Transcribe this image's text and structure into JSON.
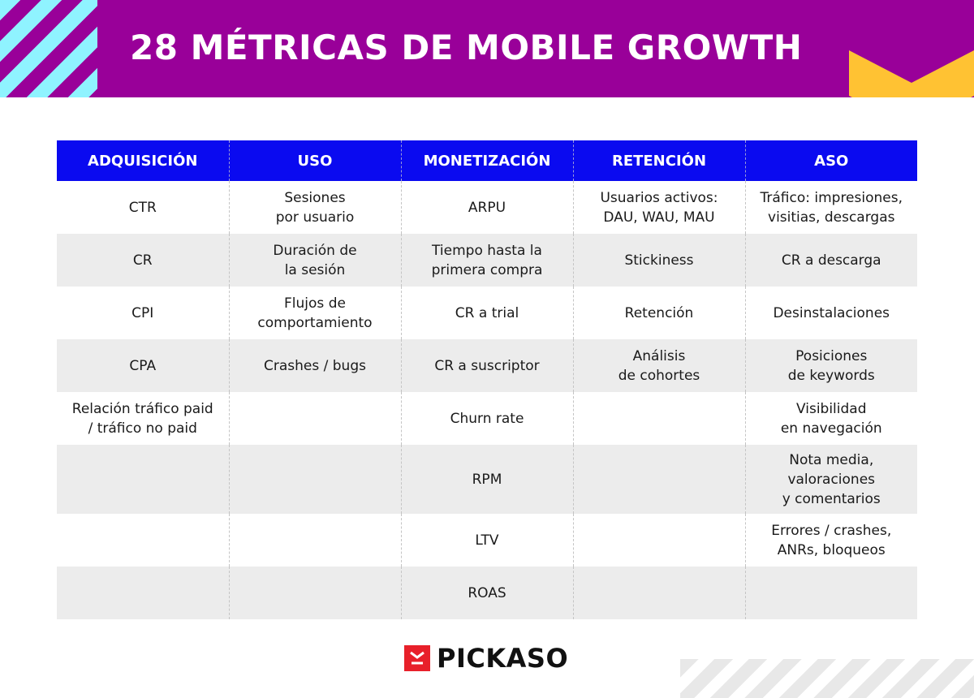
{
  "title": "28 MÉTRICAS DE MOBILE GROWTH",
  "colors": {
    "header_bg": "#990099",
    "table_header_bg": "#0a0af0",
    "stripe": "#8ff3ff",
    "accent": "#ffc233",
    "logo_red": "#e8202a"
  },
  "table": {
    "headers": [
      "ADQUISICIÓN",
      "USO",
      "MONETIZACIÓN",
      "RETENCIÓN",
      "ASO"
    ],
    "rows": [
      [
        "CTR",
        "Sesiones\npor usuario",
        "ARPU",
        "Usuarios activos:\nDAU, WAU, MAU",
        "Tráfico: impresiones,\nvisitias, descargas"
      ],
      [
        "CR",
        "Duración de\nla sesión",
        "Tiempo hasta la\nprimera compra",
        "Stickiness",
        "CR a descarga"
      ],
      [
        "CPI",
        "Flujos de\ncomportamiento",
        "CR a trial",
        "Retención",
        "Desinstalaciones"
      ],
      [
        "CPA",
        "Crashes / bugs",
        "CR a suscriptor",
        "Análisis\nde cohortes",
        "Posiciones\nde keywords"
      ],
      [
        "Relación tráfico paid\n/ tráfico no paid",
        "",
        "Churn rate",
        "",
        "Visibilidad\nen navegación"
      ],
      [
        "",
        "",
        "RPM",
        "",
        "Nota media,\nvaloraciones\ny comentarios"
      ],
      [
        "",
        "",
        "LTV",
        "",
        "Errores / crashes,\nANRs, bloqueos"
      ],
      [
        "",
        "",
        "ROAS",
        "",
        ""
      ]
    ]
  },
  "logo": {
    "text": "PICKASO",
    "icon": "pickaso-logo-icon"
  }
}
